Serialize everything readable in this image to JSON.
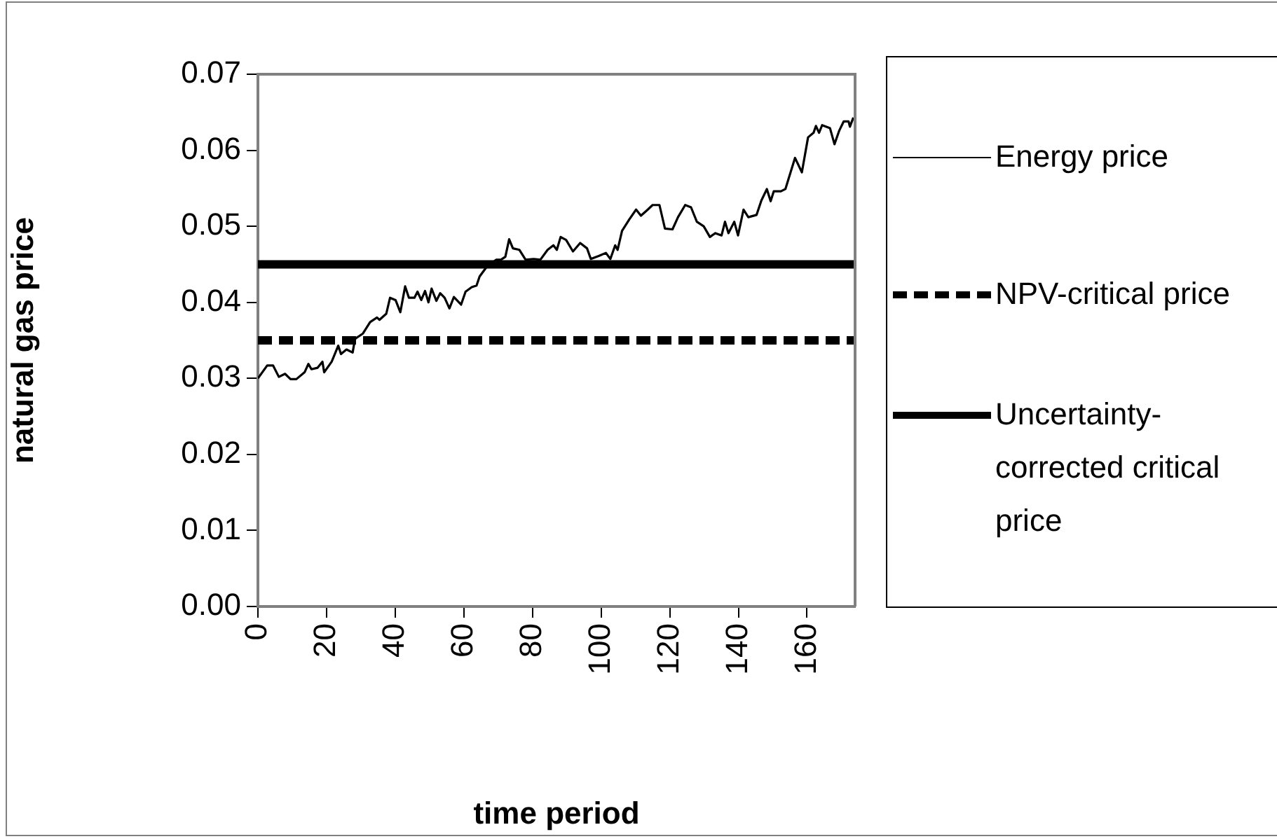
{
  "chart_data": {
    "type": "line",
    "xlabel": "time period",
    "ylabel": "natural gas price",
    "xlim": [
      0,
      174
    ],
    "xticks": [
      0,
      20,
      40,
      60,
      80,
      100,
      120,
      140,
      160
    ],
    "ylim": [
      0,
      0.07
    ],
    "yticks": [
      {
        "value": 0,
        "label": "0.00"
      },
      {
        "value": 0.01,
        "label": "0.01"
      },
      {
        "value": 0.02,
        "label": "0.02"
      },
      {
        "value": 0.03,
        "label": "0.03"
      },
      {
        "value": 0.04,
        "label": "0.04"
      },
      {
        "value": 0.05,
        "label": "0.05"
      },
      {
        "value": 0.06,
        "label": "0.06"
      },
      {
        "value": 0.07,
        "label": "0.07"
      }
    ],
    "grid": false,
    "legend": "right",
    "marker": "none",
    "series": [
      {
        "name": "Energy price",
        "color": "#000000",
        "line_style": "solid",
        "x": [
          0,
          2.7,
          4.4,
          6.1,
          7.9,
          9.5,
          11.2,
          13.6,
          14.7,
          15.6,
          17.4,
          18.8,
          19.3,
          21.5,
          23.4,
          24.2,
          25.8,
          27.6,
          28.3,
          30.6,
          32.7,
          34.7,
          35.4,
          37.4,
          38.5,
          40.1,
          41.5,
          42.9,
          44,
          45.6,
          46.5,
          47.6,
          48.7,
          49.7,
          50.6,
          52,
          53.1,
          54.4,
          55.8,
          57.1,
          59.2,
          60.5,
          62.3,
          63.7,
          64.6,
          66.7,
          69.4,
          70.8,
          72.1,
          73.2,
          74.3,
          76.2,
          78,
          80.3,
          82.3,
          84.4,
          86.1,
          87.1,
          88.2,
          89.8,
          91.8,
          93.9,
          95.9,
          97,
          99.3,
          101.4,
          102.7,
          104.1,
          104.8,
          106.1,
          108.2,
          110.2,
          111.6,
          113.6,
          115,
          117,
          118.6,
          120.8,
          122.4,
          124.5,
          126.2,
          127.9,
          129.9,
          131.7,
          133.3,
          135.1,
          136.1,
          137.1,
          138.8,
          139.9,
          141.5,
          142.9,
          145.3,
          146.7,
          148.3,
          149.4,
          150.3,
          152.4,
          153.7,
          156.5,
          158.5,
          160.3,
          161.9,
          162.6,
          163.5,
          164.4,
          166.7,
          168,
          169.4,
          170.7,
          172.1,
          172.5,
          173.5
        ],
        "values": [
          0.03,
          0.0317,
          0.0317,
          0.0302,
          0.0306,
          0.0299,
          0.0299,
          0.0308,
          0.0319,
          0.0312,
          0.0314,
          0.0322,
          0.0308,
          0.0322,
          0.0343,
          0.0332,
          0.0338,
          0.0334,
          0.0352,
          0.0359,
          0.0374,
          0.038,
          0.0377,
          0.0385,
          0.0406,
          0.0403,
          0.0387,
          0.0421,
          0.0406,
          0.0406,
          0.0414,
          0.0403,
          0.0415,
          0.04,
          0.0418,
          0.0402,
          0.0412,
          0.0406,
          0.0392,
          0.0407,
          0.0397,
          0.0414,
          0.042,
          0.0422,
          0.0434,
          0.0447,
          0.0456,
          0.0456,
          0.046,
          0.0483,
          0.0471,
          0.0469,
          0.0456,
          0.0457,
          0.0456,
          0.0469,
          0.0475,
          0.0469,
          0.0486,
          0.0482,
          0.0467,
          0.0478,
          0.0471,
          0.0457,
          0.0461,
          0.0465,
          0.0457,
          0.0475,
          0.0469,
          0.0494,
          0.0509,
          0.0522,
          0.0514,
          0.0522,
          0.0528,
          0.0528,
          0.0497,
          0.0496,
          0.0512,
          0.0528,
          0.0525,
          0.0506,
          0.05,
          0.0486,
          0.0491,
          0.0488,
          0.0506,
          0.0491,
          0.0506,
          0.0488,
          0.0522,
          0.0512,
          0.0515,
          0.0534,
          0.0549,
          0.0533,
          0.0546,
          0.0546,
          0.0549,
          0.059,
          0.0571,
          0.0617,
          0.0623,
          0.0632,
          0.0623,
          0.0633,
          0.0629,
          0.0608,
          0.0626,
          0.0638,
          0.0638,
          0.0631,
          0.0643
        ]
      },
      {
        "name": "NPV-critical price",
        "color": "#000000",
        "line_style": "dashed",
        "x": [
          0,
          174
        ],
        "values": [
          0.035,
          0.035
        ]
      },
      {
        "name": "Uncertainty-corrected critical price",
        "color": "#000000",
        "line_style": "solid",
        "x": [
          0,
          174
        ],
        "values": [
          0.045,
          0.045
        ]
      }
    ]
  }
}
